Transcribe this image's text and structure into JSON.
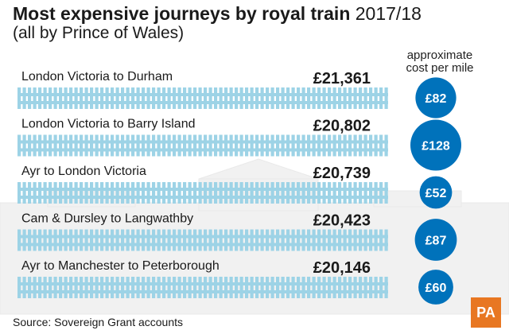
{
  "header": {
    "title_bold": "Most expensive journeys by royal train",
    "title_light": "2017/18",
    "subtitle": "(all by Prince of Wales)",
    "cost_header": "approximate cost per mile"
  },
  "chart_data": {
    "type": "bar",
    "categories": [
      "London Victoria to Durham",
      "London Victoria to Barry Island",
      "Ayr to London Victoria",
      "Cam & Dursley to Langwathby",
      "Ayr to Manchester to Peterborough"
    ],
    "values": [
      21361,
      20802,
      20739,
      20423,
      20146
    ],
    "value_labels": [
      "£21,361",
      "£20,802",
      "£20,739",
      "£20,423",
      "£20,146"
    ],
    "cost_per_mile": [
      82,
      128,
      52,
      87,
      60
    ],
    "cost_per_mile_labels": [
      "£82",
      "£128",
      "£52",
      "£87",
      "£60"
    ],
    "title": "Most expensive journeys by royal train 2017/18",
    "subtitle": "(all by Prince of Wales)",
    "colors": {
      "track": "#9dd3e6",
      "circle": "#0072bb",
      "text": "#1a1a1a"
    }
  },
  "footer": {
    "source": "Source: Sovereign Grant accounts",
    "logo": "PA"
  }
}
